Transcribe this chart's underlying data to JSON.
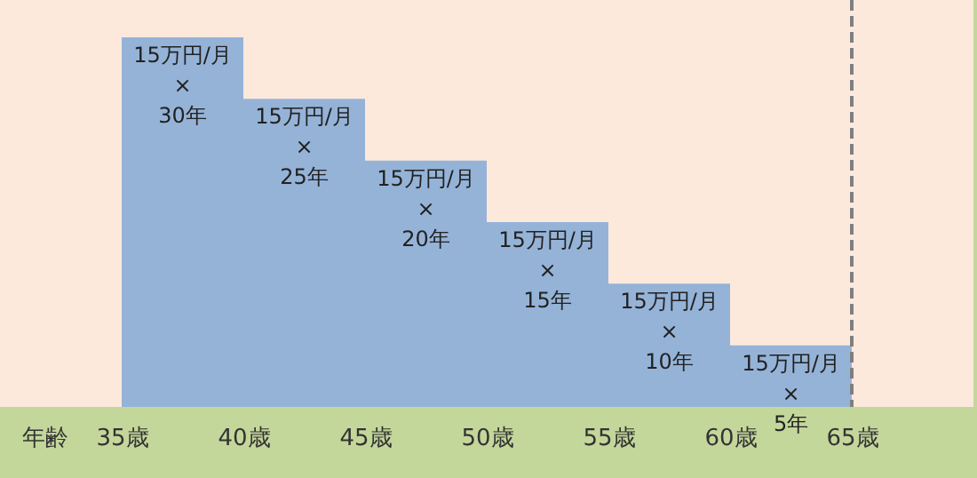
{
  "chart_data": {
    "type": "bar",
    "xlabel": "年齢",
    "x": [
      37.5,
      42.5,
      47.5,
      52.5,
      57.5,
      62.5
    ],
    "values": [
      30,
      25,
      20,
      15,
      10,
      5
    ],
    "color": "#95b3d7",
    "value_labels": [
      "15万円/月\n×\n30年",
      "15万円/月\n×\n25年",
      "15万円/月\n×\n20年",
      "15万円/月\n×\n15年",
      "15万円/月\n×\n10年",
      "15万円/月\n×\n5年"
    ],
    "xlim": [
      30,
      70
    ],
    "xticks": [
      {
        "value": 35,
        "label": "35歳"
      },
      {
        "value": 40,
        "label": "40歳"
      },
      {
        "value": 45,
        "label": "45歳"
      },
      {
        "value": 50,
        "label": "50歳"
      },
      {
        "value": 55,
        "label": "55歳"
      },
      {
        "value": 60,
        "label": "60歳"
      },
      {
        "value": 65,
        "label": "65歳"
      }
    ],
    "ref_lines": [
      {
        "axis": "x",
        "value": 65,
        "color": "#7f7f7f",
        "line_style": "dashed"
      }
    ],
    "tick_labels": "x",
    "grid": false
  }
}
